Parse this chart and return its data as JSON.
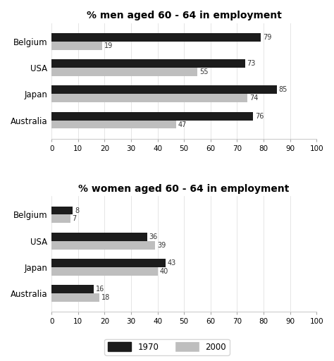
{
  "men_title": "% men aged 60 - 64 in employment",
  "women_title": "% women aged 60 - 64 in employment",
  "countries": [
    "Belgium",
    "USA",
    "Japan",
    "Australia"
  ],
  "men_1970": [
    79,
    73,
    85,
    76
  ],
  "men_2000": [
    19,
    55,
    74,
    47
  ],
  "women_1970": [
    8,
    36,
    43,
    16
  ],
  "women_2000": [
    7,
    39,
    40,
    18
  ],
  "color_1970": "#1c1c1c",
  "color_2000": "#bebebe",
  "xlim": [
    0,
    100
  ],
  "xticks": [
    0,
    10,
    20,
    30,
    40,
    50,
    60,
    70,
    80,
    90,
    100
  ],
  "bar_height": 0.32,
  "legend_label_1970": "1970",
  "legend_label_2000": "2000",
  "title_fontsize": 10,
  "label_fontsize": 8.5,
  "tick_fontsize": 7.5,
  "annotation_fontsize": 7,
  "background_color": "#ffffff"
}
